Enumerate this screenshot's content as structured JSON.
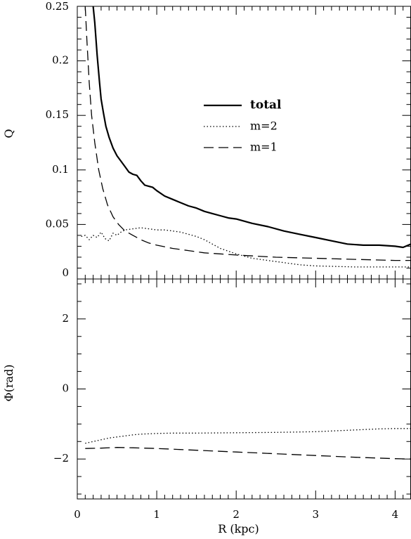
{
  "chart_data": [
    {
      "type": "line",
      "panel": "top",
      "xlabel": "",
      "ylabel": "Q",
      "xlim": [
        0,
        4.2
      ],
      "ylim": [
        0,
        0.25
      ],
      "yticks": [
        0,
        0.05,
        0.1,
        0.15,
        0.2,
        0.25
      ],
      "ytick_labels": [
        "0",
        "0.05",
        "0.1",
        "0.15",
        "0.2",
        "0.25"
      ],
      "legend_placement": "center-right",
      "series": [
        {
          "name": "total",
          "style": "solid",
          "bold_label": true,
          "x": [
            0.2,
            0.22,
            0.25,
            0.28,
            0.3,
            0.33,
            0.36,
            0.4,
            0.45,
            0.5,
            0.55,
            0.6,
            0.65,
            0.7,
            0.75,
            0.8,
            0.85,
            0.9,
            0.95,
            1.0,
            1.1,
            1.2,
            1.3,
            1.4,
            1.5,
            1.6,
            1.7,
            1.8,
            1.9,
            2.0,
            2.2,
            2.4,
            2.6,
            2.8,
            3.0,
            3.2,
            3.4,
            3.6,
            3.8,
            4.0,
            4.1,
            4.2
          ],
          "y": [
            0.25,
            0.235,
            0.205,
            0.18,
            0.165,
            0.152,
            0.14,
            0.13,
            0.12,
            0.113,
            0.108,
            0.103,
            0.098,
            0.096,
            0.095,
            0.09,
            0.086,
            0.085,
            0.084,
            0.081,
            0.076,
            0.073,
            0.07,
            0.067,
            0.065,
            0.062,
            0.06,
            0.058,
            0.056,
            0.055,
            0.051,
            0.048,
            0.044,
            0.041,
            0.038,
            0.035,
            0.032,
            0.031,
            0.031,
            0.03,
            0.029,
            0.032
          ]
        },
        {
          "name": "m=2",
          "style": "dotted",
          "bold_label": false,
          "x": [
            0.05,
            0.1,
            0.15,
            0.2,
            0.25,
            0.3,
            0.35,
            0.4,
            0.45,
            0.5,
            0.55,
            0.6,
            0.7,
            0.8,
            0.9,
            1.0,
            1.1,
            1.2,
            1.3,
            1.4,
            1.5,
            1.6,
            1.7,
            1.8,
            2.0,
            2.2,
            2.5,
            2.8,
            3.0,
            3.5,
            4.0,
            4.2
          ],
          "y": [
            0.039,
            0.04,
            0.036,
            0.04,
            0.038,
            0.043,
            0.037,
            0.035,
            0.042,
            0.04,
            0.043,
            0.045,
            0.046,
            0.047,
            0.046,
            0.045,
            0.045,
            0.044,
            0.043,
            0.041,
            0.039,
            0.036,
            0.032,
            0.028,
            0.023,
            0.019,
            0.016,
            0.013,
            0.012,
            0.011,
            0.011,
            0.011
          ]
        },
        {
          "name": "m=1",
          "style": "dashed",
          "bold_label": false,
          "x": [
            0.1,
            0.12,
            0.15,
            0.18,
            0.22,
            0.27,
            0.32,
            0.38,
            0.45,
            0.52,
            0.6,
            0.7,
            0.8,
            0.9,
            1.0,
            1.2,
            1.4,
            1.6,
            1.8,
            2.0,
            2.5,
            3.0,
            3.5,
            4.0,
            4.2
          ],
          "y": [
            0.25,
            0.22,
            0.18,
            0.15,
            0.125,
            0.1,
            0.083,
            0.068,
            0.057,
            0.05,
            0.044,
            0.04,
            0.036,
            0.033,
            0.031,
            0.028,
            0.026,
            0.024,
            0.023,
            0.022,
            0.02,
            0.019,
            0.018,
            0.017,
            0.017
          ]
        }
      ]
    },
    {
      "type": "line",
      "panel": "bottom",
      "xlabel": "R (kpc)",
      "ylabel": "Φ(rad)",
      "xlim": [
        0,
        4.2
      ],
      "ylim": [
        -3.14,
        3.14
      ],
      "xticks": [
        0,
        1,
        2,
        3,
        4
      ],
      "xtick_labels": [
        "0",
        "1",
        "2",
        "3",
        "4"
      ],
      "yticks": [
        -2,
        0,
        2
      ],
      "ytick_labels": [
        "−2",
        "0",
        "2"
      ],
      "series": [
        {
          "name": "m=2",
          "style": "dotted",
          "x": [
            0.1,
            0.2,
            0.3,
            0.4,
            0.5,
            0.6,
            0.7,
            0.8,
            0.9,
            1.0,
            1.2,
            1.5,
            2.0,
            2.5,
            3.0,
            3.2,
            3.5,
            3.8,
            4.0,
            4.2
          ],
          "y": [
            -1.55,
            -1.5,
            -1.45,
            -1.4,
            -1.37,
            -1.34,
            -1.31,
            -1.29,
            -1.28,
            -1.27,
            -1.26,
            -1.26,
            -1.25,
            -1.24,
            -1.22,
            -1.2,
            -1.17,
            -1.14,
            -1.13,
            -1.13
          ]
        },
        {
          "name": "m=1",
          "style": "dashed",
          "x": [
            0.1,
            0.3,
            0.5,
            0.7,
            1.0,
            1.5,
            2.0,
            2.5,
            3.0,
            3.5,
            4.0,
            4.2
          ],
          "y": [
            -1.7,
            -1.69,
            -1.67,
            -1.68,
            -1.7,
            -1.75,
            -1.8,
            -1.85,
            -1.9,
            -1.95,
            -1.99,
            -2.0
          ]
        }
      ]
    }
  ],
  "legend": {
    "entries": [
      {
        "label": "total",
        "style": "solid",
        "bold": true
      },
      {
        "label": "m=2",
        "style": "dotted",
        "bold": false
      },
      {
        "label": "m=1",
        "style": "dashed",
        "bold": false
      }
    ]
  },
  "colors": {
    "line": "#000000",
    "background": "#ffffff"
  }
}
